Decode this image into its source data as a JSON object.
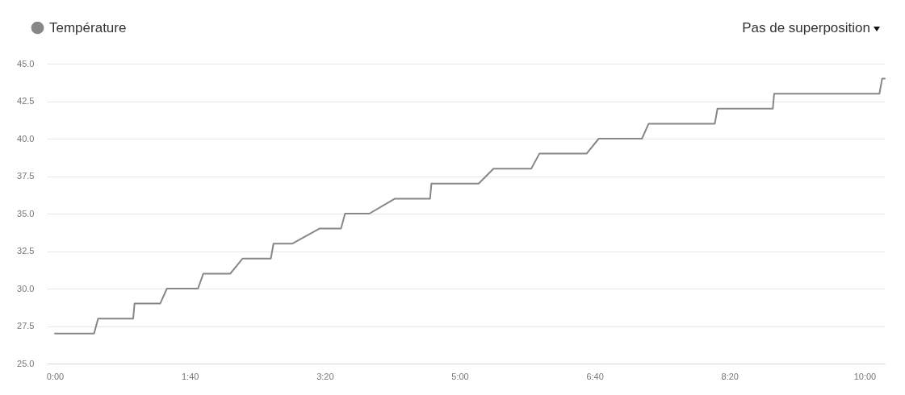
{
  "chart_data": {
    "type": "line",
    "x": [
      0,
      29,
      32,
      58,
      59,
      78,
      83,
      106,
      110,
      130,
      139,
      160,
      162,
      176,
      196,
      212,
      215,
      233,
      252,
      278,
      279,
      314,
      325,
      353,
      359,
      394,
      403,
      435,
      440,
      489,
      491,
      532,
      533,
      611,
      613,
      615
    ],
    "series": [
      {
        "name": "Température",
        "color": "#878787",
        "values": [
          27,
          27,
          28,
          28,
          29,
          29,
          30,
          30,
          31,
          31,
          32,
          32,
          33,
          33,
          34,
          34,
          35,
          35,
          36,
          36,
          37,
          37,
          38,
          38,
          39,
          39,
          40,
          40,
          41,
          41,
          42,
          42,
          43,
          43,
          44,
          44
        ]
      }
    ],
    "xlim": [
      -6,
      615
    ],
    "xticks": [
      {
        "value": 0,
        "label": "0:00"
      },
      {
        "value": 100,
        "label": "1:40"
      },
      {
        "value": 200,
        "label": "3:20"
      },
      {
        "value": 300,
        "label": "5:00"
      },
      {
        "value": 400,
        "label": "6:40"
      },
      {
        "value": 500,
        "label": "8:20"
      },
      {
        "value": 600,
        "label": "10:00"
      }
    ],
    "ylim": [
      25,
      45
    ],
    "yticks": [
      {
        "value": 25,
        "label": "25.0"
      },
      {
        "value": 27.5,
        "label": "27.5"
      },
      {
        "value": 30,
        "label": "30.0"
      },
      {
        "value": 32.5,
        "label": "32.5"
      },
      {
        "value": 35,
        "label": "35.0"
      },
      {
        "value": 37.5,
        "label": "37.5"
      },
      {
        "value": 40,
        "label": "40.0"
      },
      {
        "value": 42.5,
        "label": "42.5"
      },
      {
        "value": 45,
        "label": "45.0"
      }
    ],
    "grid": "y",
    "legend": "top left",
    "annotations": [
      "Pas de superposition"
    ]
  }
}
